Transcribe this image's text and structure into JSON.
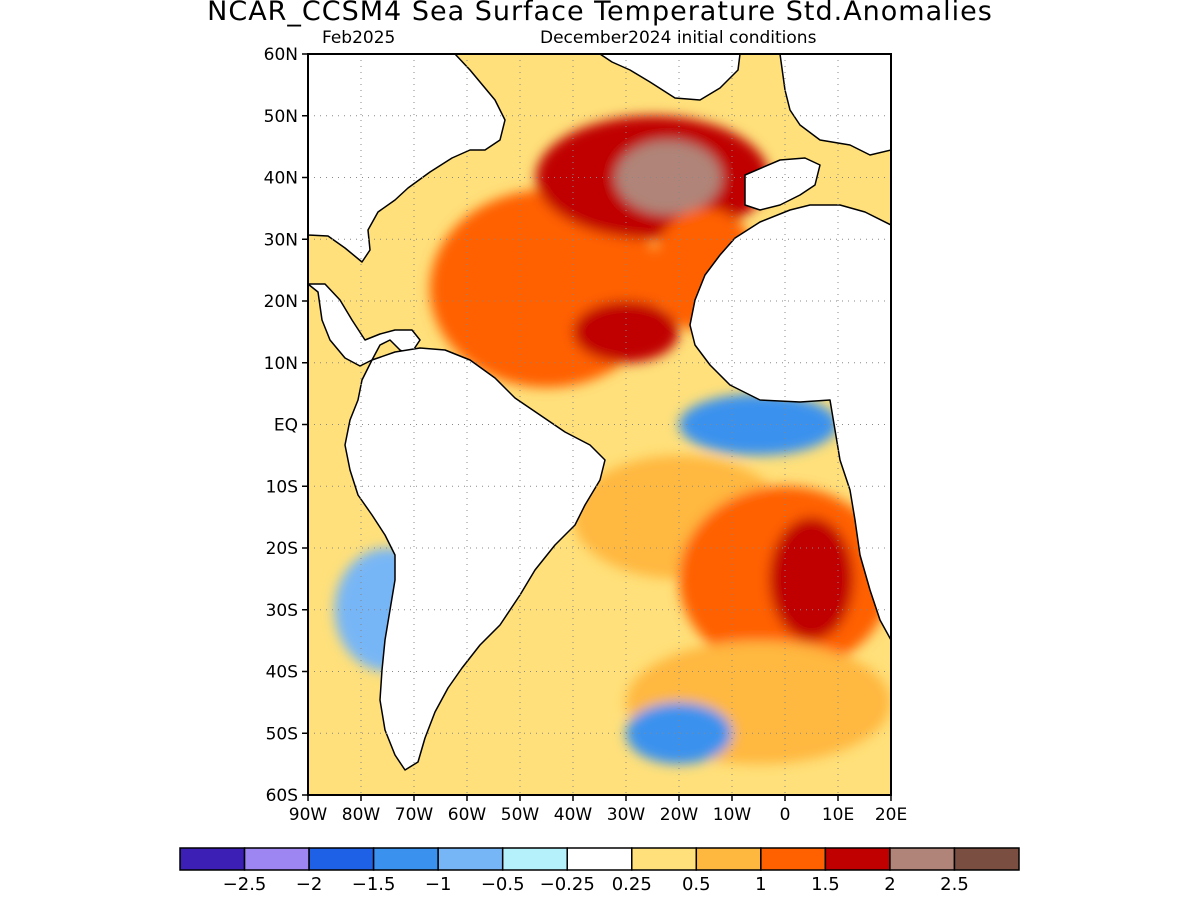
{
  "title": "NCAR_CCSM4 Sea Surface Temperature Std.Anomalies",
  "subtitle_left": "Feb2025",
  "subtitle_right": "December2024 initial conditions",
  "lat_labels": [
    "60N",
    "50N",
    "40N",
    "30N",
    "20N",
    "10N",
    "EQ",
    "10S",
    "20S",
    "30S",
    "40S",
    "50S",
    "60S"
  ],
  "lon_labels": [
    "90W",
    "80W",
    "70W",
    "60W",
    "50W",
    "40W",
    "30W",
    "20W",
    "10W",
    "0",
    "10E",
    "20E"
  ],
  "map_extent": {
    "lon": [
      -90,
      20
    ],
    "lat": [
      -60,
      60
    ]
  },
  "colorbar": {
    "colors": [
      "#3c1fb5",
      "#9d85f2",
      "#1e61e6",
      "#3b92ee",
      "#77b6f6",
      "#b5f1fb",
      "#ffffff",
      "#ffe07a",
      "#ffb83f",
      "#ff6000",
      "#c00000",
      "#b08478",
      "#7a4f42"
    ],
    "labels": [
      "−2.5",
      "−2",
      "−1.5",
      "−1",
      "−0.5",
      "−0.25",
      "0.25",
      "0.5",
      "1",
      "1.5",
      "2",
      "2.5"
    ]
  },
  "anomaly_regions": [
    {
      "lon": -45,
      "lat": 22,
      "rx": 22,
      "ry": 16,
      "level": 9
    },
    {
      "lon": -25,
      "lat": 40,
      "rx": 22,
      "ry": 10,
      "level": 10
    },
    {
      "lon": -22,
      "lat": 40,
      "rx": 10,
      "ry": 6,
      "level": 11
    },
    {
      "lon": -30,
      "lat": 15,
      "rx": 10,
      "ry": 5,
      "level": 10
    },
    {
      "lon": -15,
      "lat": 25,
      "rx": 10,
      "ry": 10,
      "level": 9
    },
    {
      "lon": -5,
      "lat": 0,
      "rx": 15,
      "ry": 5,
      "level": 3
    },
    {
      "lon": -20,
      "lat": -15,
      "rx": 20,
      "ry": 10,
      "level": 8
    },
    {
      "lon": 0,
      "lat": -25,
      "rx": 20,
      "ry": 15,
      "level": 9
    },
    {
      "lon": 5,
      "lat": -25,
      "rx": 8,
      "ry": 10,
      "level": 10
    },
    {
      "lon": -5,
      "lat": -45,
      "rx": 25,
      "ry": 10,
      "level": 8
    },
    {
      "lon": -20,
      "lat": -50,
      "rx": 10,
      "ry": 5,
      "level": 3
    },
    {
      "lon": -75,
      "lat": -30,
      "rx": 10,
      "ry": 10,
      "level": 4
    }
  ]
}
